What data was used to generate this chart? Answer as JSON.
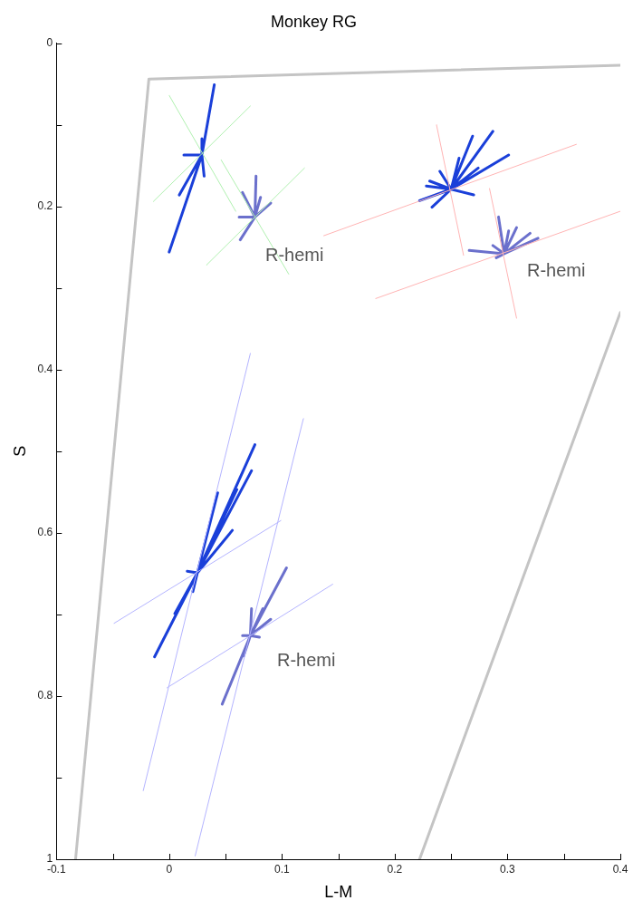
{
  "chart_data": {
    "type": "line",
    "title": "Monkey RG",
    "xlabel": "L-M",
    "ylabel": "S",
    "xlim": [
      -0.1,
      0.4
    ],
    "ylim": [
      1,
      0
    ],
    "xticks": [
      -0.1,
      {
        "value": -0.05,
        "label": null
      },
      0,
      {
        "value": 0.05,
        "label": null
      },
      0.1,
      {
        "value": 0.15,
        "label": null
      },
      0.2,
      {
        "value": 0.25,
        "label": null
      },
      0.3,
      {
        "value": 0.35,
        "label": null
      },
      0.4
    ],
    "yticks": [
      0,
      {
        "value": 0.1,
        "label": null
      },
      0.2,
      {
        "value": 0.3,
        "label": null
      },
      0.4,
      {
        "value": 0.5,
        "label": null
      },
      0.6,
      {
        "value": 0.7,
        "label": null
      },
      0.8,
      {
        "value": 0.9,
        "label": null
      },
      1
    ],
    "grid": false,
    "legend": false,
    "marker": "none",
    "line_style": "solid",
    "annotations": [
      "R-hemi",
      "R-hemi",
      "R-hemi"
    ],
    "series": [
      {
        "color": "#c4c4c4",
        "x": [
          -0.083,
          -0.018,
          0.4,
          null,
          0.222,
          0.4
        ],
        "values": [
          1,
          0.044,
          0.027,
          null,
          1,
          0.33
        ]
      },
      {
        "color": "#b0f0b0",
        "x": [
          0.0,
          0.059,
          null,
          0.046,
          0.106,
          null,
          -0.014,
          0.072,
          null,
          0.033,
          0.12
        ],
        "values": [
          0.064,
          0.206,
          null,
          0.143,
          0.283,
          null,
          0.194,
          0.077,
          null,
          0.272,
          0.153
        ]
      },
      {
        "color": "#ffb4b4",
        "x": [
          0.237,
          0.261,
          null,
          0.137,
          0.361,
          null,
          0.284,
          0.308,
          null,
          0.183,
          0.4
        ],
        "values": [
          0.1,
          0.26,
          null,
          0.236,
          0.124,
          null,
          0.178,
          0.337,
          null,
          0.313,
          0.206
        ]
      },
      {
        "color": "#b4b4ff",
        "x": [
          0.072,
          -0.023,
          null,
          0.119,
          0.023,
          null,
          -0.049,
          0.099,
          null,
          -0.002,
          0.145
        ],
        "values": [
          0.38,
          0.916,
          null,
          0.46,
          0.996,
          null,
          0.711,
          0.585,
          null,
          0.79,
          0.663
        ]
      },
      {
        "color": "#1a3fd9",
        "x": [
          0.029,
          0.04,
          null,
          0.029,
          0.0,
          null,
          0.029,
          0.009,
          null,
          0.029,
          0.013,
          null,
          0.029,
          0.031,
          null,
          0.029,
          0.029
        ],
        "values": [
          0.137,
          0.051,
          null,
          0.137,
          0.256,
          null,
          0.137,
          0.186,
          null,
          0.137,
          0.137,
          null,
          0.137,
          0.163,
          null,
          0.137,
          0.117
        ]
      },
      {
        "color": "#6b70cc",
        "x": [
          0.076,
          0.077,
          null,
          0.076,
          0.063,
          null,
          0.076,
          0.065,
          null,
          0.076,
          0.09,
          null,
          0.076,
          0.062,
          null,
          0.076,
          0.081
        ],
        "values": [
          0.213,
          0.163,
          null,
          0.213,
          0.241,
          null,
          0.213,
          0.183,
          null,
          0.213,
          0.196,
          null,
          0.213,
          0.213,
          null,
          0.213,
          0.189
        ]
      },
      {
        "color": "#1a3fd9",
        "x": [
          0.25,
          0.287,
          null,
          0.25,
          0.301,
          null,
          0.25,
          0.269,
          null,
          0.25,
          0.257,
          null,
          0.25,
          0.274,
          null,
          0.25,
          0.27,
          null,
          0.25,
          0.233,
          null,
          0.25,
          0.222,
          null,
          0.25,
          0.228,
          null,
          0.25,
          0.24,
          null,
          0.25,
          0.231
        ],
        "values": [
          0.179,
          0.108,
          null,
          0.179,
          0.137,
          null,
          0.179,
          0.114,
          null,
          0.179,
          0.141,
          null,
          0.179,
          0.153,
          null,
          0.179,
          0.186,
          null,
          0.179,
          0.201,
          null,
          0.179,
          0.193,
          null,
          0.179,
          0.175,
          null,
          0.179,
          0.157,
          null,
          0.179,
          0.169
        ]
      },
      {
        "color": "#6b70cc",
        "x": [
          0.297,
          0.292,
          null,
          0.297,
          0.308,
          null,
          0.297,
          0.327,
          null,
          0.297,
          0.32,
          null,
          0.297,
          0.266,
          null,
          0.297,
          0.287,
          null,
          0.297,
          0.29,
          null,
          0.297,
          0.301
        ],
        "values": [
          0.258,
          0.213,
          null,
          0.258,
          0.226,
          null,
          0.258,
          0.239,
          null,
          0.258,
          0.233,
          null,
          0.258,
          0.254,
          null,
          0.258,
          0.248,
          null,
          0.258,
          0.263,
          null,
          0.258,
          0.23
        ]
      },
      {
        "color": "#1a3fd9",
        "x": [
          0.025,
          0.076,
          null,
          0.025,
          0.073,
          null,
          0.025,
          0.043,
          null,
          0.025,
          0.056,
          null,
          0.025,
          -0.013,
          null,
          0.025,
          0.005,
          null,
          0.025,
          0.016,
          null,
          0.025,
          0.021,
          null,
          0.025,
          0.06
        ],
        "values": [
          0.649,
          0.492,
          null,
          0.649,
          0.524,
          null,
          0.649,
          0.551,
          null,
          0.649,
          0.597,
          null,
          0.649,
          0.752,
          null,
          0.649,
          0.699,
          null,
          0.649,
          0.647,
          null,
          0.649,
          0.672,
          null,
          0.649,
          0.547
        ]
      },
      {
        "color": "#6b70cc",
        "x": [
          0.072,
          0.104,
          null,
          0.072,
          0.047,
          null,
          0.072,
          0.09,
          null,
          0.072,
          0.073,
          null,
          0.072,
          0.083,
          null,
          0.072,
          0.066,
          null,
          0.072,
          0.065,
          null,
          0.072,
          0.08
        ],
        "values": [
          0.726,
          0.643,
          null,
          0.726,
          0.81,
          null,
          0.726,
          0.706,
          null,
          0.726,
          0.693,
          null,
          0.726,
          0.693,
          null,
          0.726,
          0.751,
          null,
          0.726,
          0.726,
          null,
          0.726,
          0.728
        ]
      }
    ]
  }
}
